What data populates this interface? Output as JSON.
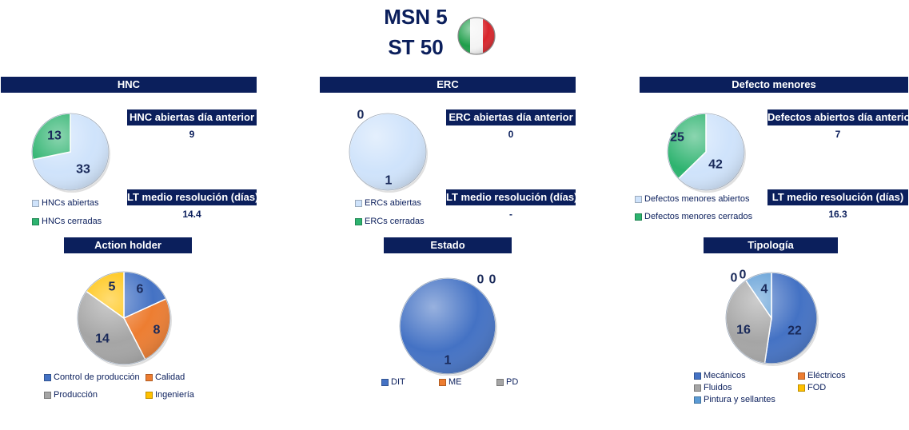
{
  "header": {
    "line1": "MSN 5",
    "line2": "ST 50"
  },
  "colors": {
    "hnc_open": "#cfe3fb",
    "hnc_closed": "#2db36f",
    "ah_control": "#4472c4",
    "ah_calidad": "#ed7d31",
    "ah_produccion": "#a5a5a5",
    "ah_ingenieria": "#ffc000",
    "est_dit": "#4472c4",
    "est_me": "#ed7d31",
    "est_pd": "#a5a5a5",
    "tip_mecanicos": "#4472c4",
    "tip_electricos": "#ed7d31",
    "tip_fluidos": "#a5a5a5",
    "tip_fod": "#ffc000",
    "tip_pintura": "#5b9bd5"
  },
  "panels": {
    "hnc": {
      "title": "HNC",
      "open_label": "HNC abiertas día anterior",
      "open_value": "9",
      "lt_label": "LT medio resolución (días)",
      "lt_value": "14.4",
      "legend": [
        "HNCs abiertas",
        "HNCs cerradas"
      ]
    },
    "erc": {
      "title": "ERC",
      "open_label": "ERC abiertas día anterior",
      "open_value": "0",
      "lt_label": "LT medio resolución (días)",
      "lt_value": "-",
      "legend": [
        "ERCs abiertas",
        "ERCs cerradas"
      ]
    },
    "defectos": {
      "title": "Defecto menores",
      "open_label": "Defectos abiertos día anterior",
      "open_value": "7",
      "lt_label": "LT medio resolución (días)",
      "lt_value": "16.3",
      "legend": [
        "Defectos menores abiertos",
        "Defectos menores cerrados"
      ]
    },
    "action_holder": {
      "title": "Action holder",
      "legend": [
        "Control de producción",
        "Calidad",
        "Producción",
        "Ingeniería"
      ]
    },
    "estado": {
      "title": "Estado",
      "legend": [
        "DIT",
        "ME",
        "PD"
      ]
    },
    "tipologia": {
      "title": "Tipología",
      "legend": [
        "Mecánicos",
        "Eléctricos",
        "Fluidos",
        "FOD",
        "Pintura y sellantes"
      ]
    }
  },
  "chart_data": [
    {
      "type": "pie",
      "name": "HNC",
      "categories": [
        "HNCs abiertas",
        "HNCs cerradas"
      ],
      "values": [
        33,
        13
      ]
    },
    {
      "type": "pie",
      "name": "ERC",
      "categories": [
        "ERCs abiertas",
        "ERCs cerradas"
      ],
      "values": [
        1,
        0
      ]
    },
    {
      "type": "pie",
      "name": "Defecto menores",
      "categories": [
        "Defectos menores abiertos",
        "Defectos menores cerrados"
      ],
      "values": [
        42,
        25
      ]
    },
    {
      "type": "pie",
      "name": "Action holder",
      "categories": [
        "Control de producción",
        "Calidad",
        "Producción",
        "Ingeniería"
      ],
      "values": [
        6,
        8,
        14,
        5
      ]
    },
    {
      "type": "pie",
      "name": "Estado",
      "categories": [
        "DIT",
        "ME",
        "PD"
      ],
      "values": [
        1,
        0,
        0
      ]
    },
    {
      "type": "pie",
      "name": "Tipología",
      "categories": [
        "Mecánicos",
        "Eléctricos",
        "Fluidos",
        "FOD",
        "Pintura y sellantes"
      ],
      "values": [
        22,
        0,
        16,
        0,
        4
      ]
    }
  ]
}
